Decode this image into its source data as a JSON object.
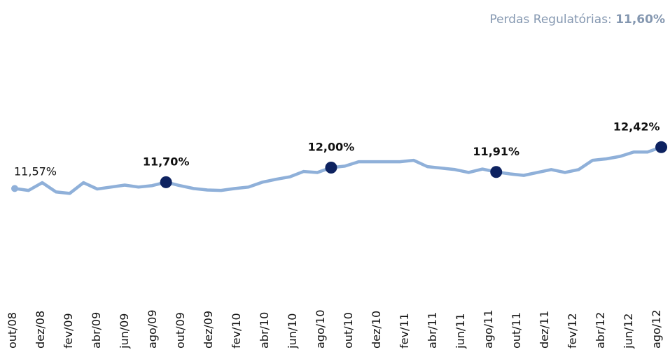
{
  "header": {
    "label": "Perdas Regulatórias:",
    "value": "11,60%"
  },
  "chart_data": {
    "type": "line",
    "categories": [
      "out/08",
      null,
      "dez/08",
      null,
      "fev/09",
      null,
      "abr/09",
      null,
      "jun/09",
      null,
      "ago/09",
      null,
      "out/09",
      null,
      "dez/09",
      null,
      "fev/10",
      null,
      "abr/10",
      null,
      "jun/10",
      null,
      "ago/10",
      null,
      "out/10",
      null,
      "dez/10",
      null,
      "fev/11",
      null,
      "abr/11",
      null,
      "jun/11",
      null,
      "ago/11",
      null,
      "out/11",
      null,
      "dez/11",
      null,
      "fev/12",
      null,
      "abr/12",
      null,
      "jun/12",
      null,
      "ago/12",
      null
    ],
    "values": [
      11.57,
      11.53,
      11.69,
      11.5,
      11.47,
      11.69,
      11.56,
      11.6,
      11.64,
      11.6,
      11.63,
      11.7,
      11.63,
      11.57,
      11.54,
      11.53,
      11.57,
      11.6,
      11.7,
      11.76,
      11.81,
      11.92,
      11.9,
      12.0,
      12.03,
      12.12,
      12.12,
      12.12,
      12.12,
      12.15,
      12.02,
      11.99,
      11.96,
      11.9,
      11.97,
      11.91,
      11.87,
      11.84,
      11.9,
      11.96,
      11.9,
      11.96,
      12.15,
      12.18,
      12.23,
      12.32,
      12.32,
      12.42
    ],
    "value_labels": [
      "11,57%",
      null,
      null,
      null,
      null,
      null,
      null,
      null,
      null,
      null,
      null,
      "11,70%",
      null,
      null,
      null,
      null,
      null,
      null,
      null,
      null,
      null,
      null,
      null,
      "12,00%",
      null,
      null,
      null,
      null,
      null,
      null,
      null,
      null,
      null,
      null,
      null,
      "11,91%",
      null,
      null,
      null,
      null,
      null,
      null,
      null,
      null,
      null,
      null,
      null,
      "12,42%"
    ],
    "highlight_points": [
      11,
      23,
      35,
      47
    ],
    "color": "#8fb0d9",
    "highlight_color": "#0d2260",
    "ylim": [
      11,
      13
    ]
  }
}
